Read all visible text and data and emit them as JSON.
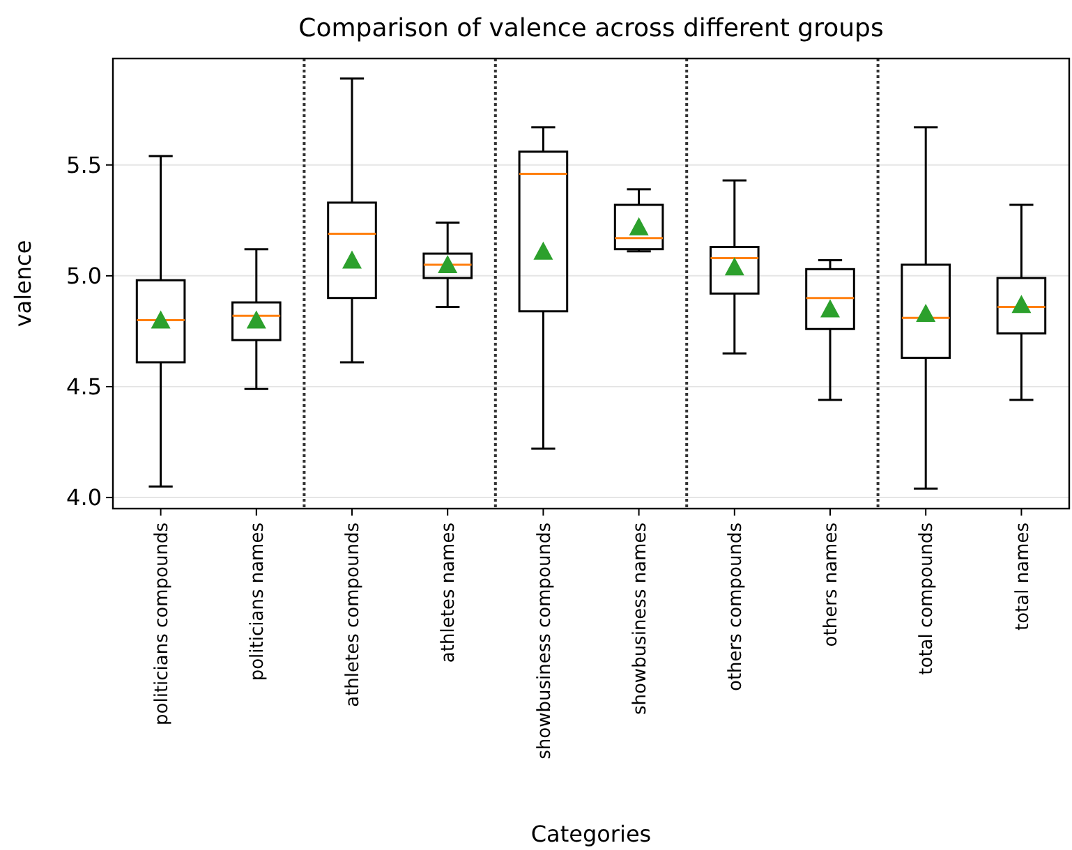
{
  "chart_data": {
    "type": "box",
    "title": "Comparison of valence across different groups",
    "xlabel": "Categories",
    "ylabel": "valence",
    "categories": [
      "politicians compounds",
      "politicians names",
      "athletes compounds",
      "athletes names",
      "showbusiness compounds",
      "showbusiness names",
      "others compounds",
      "others names",
      "total compounds",
      "total names"
    ],
    "boxes": [
      {
        "low": 4.05,
        "q1": 4.61,
        "median": 4.8,
        "q3": 4.98,
        "high": 5.54,
        "mean": 4.8
      },
      {
        "low": 4.49,
        "q1": 4.71,
        "median": 4.82,
        "q3": 4.88,
        "high": 5.12,
        "mean": 4.8
      },
      {
        "low": 4.61,
        "q1": 4.9,
        "median": 5.19,
        "q3": 5.33,
        "high": 5.89,
        "mean": 5.07
      },
      {
        "low": 4.86,
        "q1": 4.99,
        "median": 5.05,
        "q3": 5.1,
        "high": 5.24,
        "mean": 5.05
      },
      {
        "low": 4.22,
        "q1": 4.84,
        "median": 5.46,
        "q3": 5.56,
        "high": 5.67,
        "mean": 5.11
      },
      {
        "low": 5.11,
        "q1": 5.12,
        "median": 5.17,
        "q3": 5.32,
        "high": 5.39,
        "mean": 5.22
      },
      {
        "low": 4.65,
        "q1": 4.92,
        "median": 5.08,
        "q3": 5.13,
        "high": 5.43,
        "mean": 5.04
      },
      {
        "low": 4.44,
        "q1": 4.76,
        "median": 4.9,
        "q3": 5.03,
        "high": 5.07,
        "mean": 4.85
      },
      {
        "low": 4.04,
        "q1": 4.63,
        "median": 4.81,
        "q3": 5.05,
        "high": 5.67,
        "mean": 4.83
      },
      {
        "low": 4.44,
        "q1": 4.74,
        "median": 4.86,
        "q3": 4.99,
        "high": 5.32,
        "mean": 4.87
      }
    ],
    "color": "#000000",
    "marker": "triangle",
    "ylim": [
      3.95,
      5.98
    ],
    "yticks": [
      {
        "value": 4,
        "label": "4.0"
      },
      {
        "value": 4.5,
        "label": "4.5"
      },
      {
        "value": 5,
        "label": "5.0"
      },
      {
        "value": 5.5,
        "label": "5.5"
      }
    ],
    "grid": "y"
  }
}
